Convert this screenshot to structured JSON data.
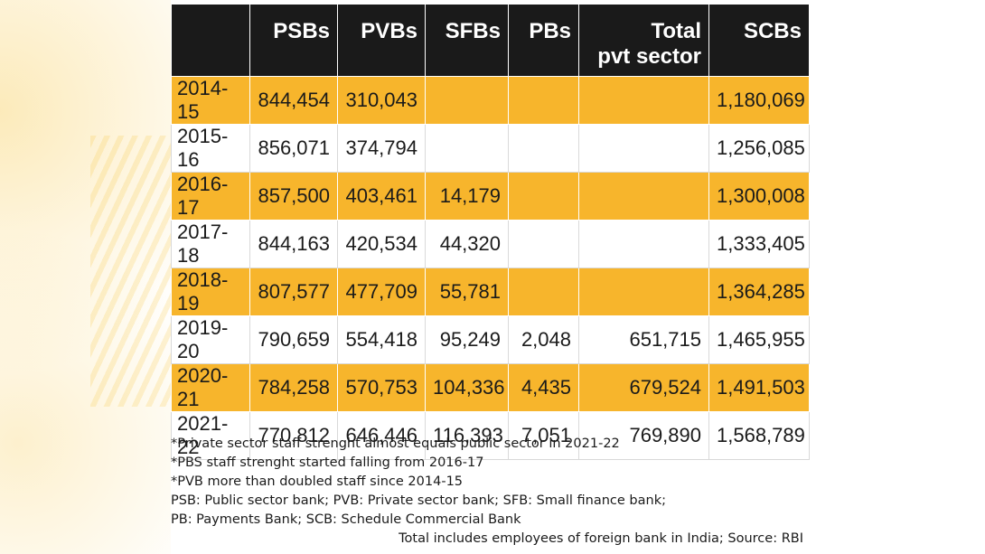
{
  "chart_data": {
    "type": "table",
    "columns": [
      "",
      "PSBs",
      "PVBs",
      "SFBs",
      "PBs",
      "Total pvt sector",
      "SCBs"
    ],
    "header_lines": [
      [
        ""
      ],
      [
        "PSBs"
      ],
      [
        "PVBs"
      ],
      [
        "SFBs"
      ],
      [
        "PBs"
      ],
      [
        "Total",
        "pvt sector"
      ],
      [
        "SCBs"
      ]
    ],
    "rows": [
      {
        "year": "2014-15",
        "PSBs": "844,454",
        "PVBs": "310,043",
        "SFBs": "",
        "PBs": "",
        "Total": "",
        "SCBs": "1,180,069"
      },
      {
        "year": "2015-16",
        "PSBs": "856,071",
        "PVBs": "374,794",
        "SFBs": "",
        "PBs": "",
        "Total": "",
        "SCBs": "1,256,085"
      },
      {
        "year": "2016-17",
        "PSBs": "857,500",
        "PVBs": "403,461",
        "SFBs": "14,179",
        "PBs": "",
        "Total": "",
        "SCBs": "1,300,008"
      },
      {
        "year": "2017-18",
        "PSBs": "844,163",
        "PVBs": "420,534",
        "SFBs": "44,320",
        "PBs": "",
        "Total": "",
        "SCBs": "1,333,405"
      },
      {
        "year": "2018-19",
        "PSBs": "807,577",
        "PVBs": "477,709",
        "SFBs": "55,781",
        "PBs": "",
        "Total": "",
        "SCBs": "1,364,285"
      },
      {
        "year": "2019-20",
        "PSBs": "790,659",
        "PVBs": "554,418",
        "SFBs": "95,249",
        "PBs": "2,048",
        "Total": "651,715",
        "SCBs": "1,465,955"
      },
      {
        "year": "2020-21",
        "PSBs": "784,258",
        "PVBs": "570,753",
        "SFBs": "104,336",
        "PBs": "4,435",
        "Total": "679,524",
        "SCBs": "1,491,503"
      },
      {
        "year": "2021-22",
        "PSBs": "770,812",
        "PVBs": "646,446",
        "SFBs": "116,393",
        "PBs": "7,051",
        "Total": "769,890",
        "SCBs": "1,568,789"
      }
    ],
    "notes": [
      "*Private sector staff strenght almost equals public sector in 2021-22",
      "*PBS staff strenght started falling from 2016-17",
      "*PVB more than doubled staff since 2014-15",
      "PSB: Public sector bank; PVB: Private sector bank; SFB: Small finance bank;",
      "PB: Payments Bank; SCB: Schedule Commercial Bank"
    ],
    "source": "Total includes employees of foreign bank in India; Source: RBI"
  },
  "colors": {
    "header_bg": "#1a1a1a",
    "header_text": "#ffffff",
    "band_yellow": "#f7b52c",
    "band_white": "#ffffff"
  }
}
